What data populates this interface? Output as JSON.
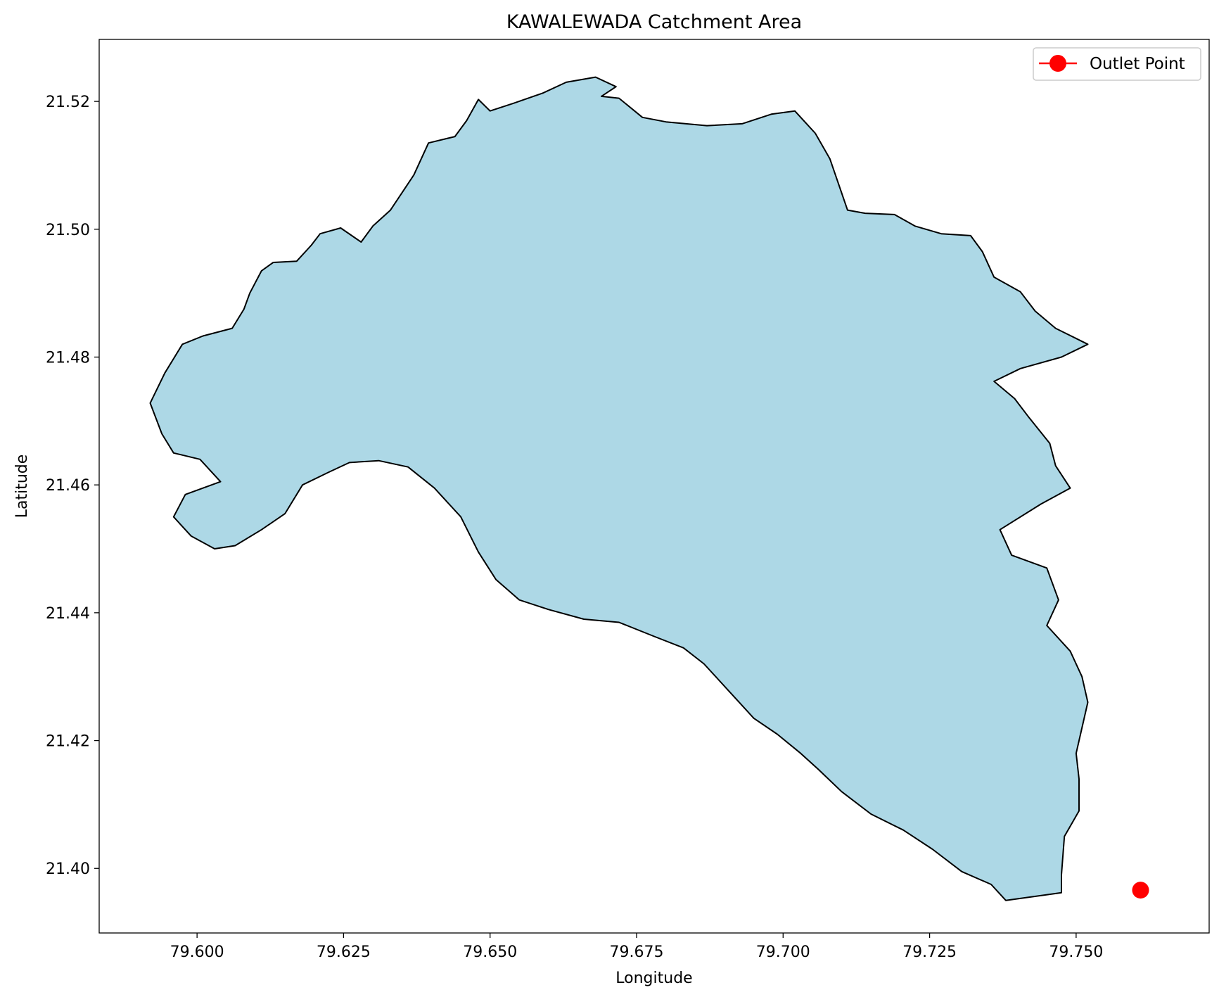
{
  "chart_data": {
    "type": "map",
    "title": "KAWALEWADA Catchment Area",
    "xlabel": "Longitude",
    "ylabel": "Latitude",
    "xlim": [
      79.5833,
      79.7727
    ],
    "ylim": [
      21.3899,
      21.5297
    ],
    "grid": false,
    "legend_position": "top-right",
    "x_ticks": [
      {
        "value": 79.6,
        "label": "79.600"
      },
      {
        "value": 79.625,
        "label": "79.625"
      },
      {
        "value": 79.65,
        "label": "79.650"
      },
      {
        "value": 79.675,
        "label": "79.675"
      },
      {
        "value": 79.7,
        "label": "79.700"
      },
      {
        "value": 79.725,
        "label": "79.725"
      },
      {
        "value": 79.75,
        "label": "79.750"
      }
    ],
    "y_ticks": [
      {
        "value": 21.4,
        "label": "21.40"
      },
      {
        "value": 21.42,
        "label": "21.42"
      },
      {
        "value": 21.44,
        "label": "21.44"
      },
      {
        "value": 21.46,
        "label": "21.46"
      },
      {
        "value": 21.48,
        "label": "21.48"
      },
      {
        "value": 21.5,
        "label": "21.50"
      },
      {
        "value": 21.52,
        "label": "21.52"
      }
    ],
    "catchment": {
      "fill": "#add8e6",
      "stroke": "#000000",
      "boundary": [
        [
          79.592,
          21.4728
        ],
        [
          79.5945,
          21.4775
        ],
        [
          79.5975,
          21.482
        ],
        [
          79.601,
          21.4833
        ],
        [
          79.606,
          21.4845
        ],
        [
          79.608,
          21.4875
        ],
        [
          79.609,
          21.49
        ],
        [
          79.611,
          21.4935
        ],
        [
          79.613,
          21.4948
        ],
        [
          79.617,
          21.495
        ],
        [
          79.6195,
          21.4975
        ],
        [
          79.621,
          21.4993
        ],
        [
          79.6245,
          21.5002
        ],
        [
          79.628,
          21.498
        ],
        [
          79.63,
          21.5005
        ],
        [
          79.633,
          21.503
        ],
        [
          79.637,
          21.5085
        ],
        [
          79.6395,
          21.5135
        ],
        [
          79.644,
          21.5145
        ],
        [
          79.646,
          21.517
        ],
        [
          79.648,
          21.5203
        ],
        [
          79.65,
          21.5185
        ],
        [
          79.654,
          21.5197
        ],
        [
          79.659,
          21.5213
        ],
        [
          79.663,
          21.523
        ],
        [
          79.668,
          21.5238
        ],
        [
          79.6715,
          21.5223
        ],
        [
          79.669,
          21.5208
        ],
        [
          79.672,
          21.5205
        ],
        [
          79.676,
          21.5175
        ],
        [
          79.68,
          21.5168
        ],
        [
          79.687,
          21.5162
        ],
        [
          79.693,
          21.5165
        ],
        [
          79.698,
          21.518
        ],
        [
          79.702,
          21.5185
        ],
        [
          79.7055,
          21.515
        ],
        [
          79.708,
          21.511
        ],
        [
          79.711,
          21.503
        ],
        [
          79.714,
          21.5025
        ],
        [
          79.719,
          21.5023
        ],
        [
          79.7225,
          21.5005
        ],
        [
          79.727,
          21.4993
        ],
        [
          79.732,
          21.499
        ],
        [
          79.734,
          21.4965
        ],
        [
          79.736,
          21.4925
        ],
        [
          79.7405,
          21.4902
        ],
        [
          79.743,
          21.4872
        ],
        [
          79.7465,
          21.4845
        ],
        [
          79.752,
          21.482
        ],
        [
          79.7475,
          21.48
        ],
        [
          79.7405,
          21.4782
        ],
        [
          79.736,
          21.4762
        ],
        [
          79.7395,
          21.4735
        ],
        [
          79.742,
          21.4705
        ],
        [
          79.7455,
          21.4665
        ],
        [
          79.7465,
          21.463
        ],
        [
          79.749,
          21.4595
        ],
        [
          79.744,
          21.457
        ],
        [
          79.737,
          21.453
        ],
        [
          79.739,
          21.449
        ],
        [
          79.745,
          21.447
        ],
        [
          79.747,
          21.442
        ],
        [
          79.745,
          21.438
        ],
        [
          79.749,
          21.434
        ],
        [
          79.751,
          21.43
        ],
        [
          79.752,
          21.426
        ],
        [
          79.751,
          21.422
        ],
        [
          79.75,
          21.418
        ],
        [
          79.7505,
          21.414
        ],
        [
          79.7505,
          21.409
        ],
        [
          79.748,
          21.405
        ],
        [
          79.7475,
          21.399
        ],
        [
          79.7475,
          21.3962
        ],
        [
          79.742,
          21.3955
        ],
        [
          79.738,
          21.395
        ],
        [
          79.7355,
          21.3975
        ],
        [
          79.7305,
          21.3995
        ],
        [
          79.7255,
          21.403
        ],
        [
          79.7205,
          21.406
        ],
        [
          79.715,
          21.4085
        ],
        [
          79.71,
          21.412
        ],
        [
          79.706,
          21.4155
        ],
        [
          79.703,
          21.418
        ],
        [
          79.699,
          21.421
        ],
        [
          79.695,
          21.4235
        ],
        [
          79.691,
          21.4275
        ],
        [
          79.6865,
          21.432
        ],
        [
          79.683,
          21.4345
        ],
        [
          79.678,
          21.4363
        ],
        [
          79.672,
          21.4385
        ],
        [
          79.666,
          21.439
        ],
        [
          79.66,
          21.4405
        ],
        [
          79.655,
          21.442
        ],
        [
          79.651,
          21.4452
        ],
        [
          79.648,
          21.4495
        ],
        [
          79.645,
          21.455
        ],
        [
          79.6405,
          21.4595
        ],
        [
          79.636,
          21.4628
        ],
        [
          79.631,
          21.4638
        ],
        [
          79.626,
          21.4635
        ],
        [
          79.6225,
          21.462
        ],
        [
          79.618,
          21.46
        ],
        [
          79.615,
          21.4555
        ],
        [
          79.611,
          21.453
        ],
        [
          79.6065,
          21.4505
        ],
        [
          79.603,
          21.45
        ],
        [
          79.599,
          21.452
        ],
        [
          79.596,
          21.455
        ],
        [
          79.598,
          21.4585
        ],
        [
          79.604,
          21.4605
        ],
        [
          79.6005,
          21.464
        ],
        [
          79.596,
          21.465
        ],
        [
          79.594,
          21.468
        ],
        [
          79.592,
          21.4728
        ]
      ]
    },
    "series": [
      {
        "name": "Outlet Point",
        "type": "point",
        "color": "#ff0000",
        "points": [
          {
            "x": 79.761,
            "y": 21.3966
          }
        ]
      }
    ]
  }
}
